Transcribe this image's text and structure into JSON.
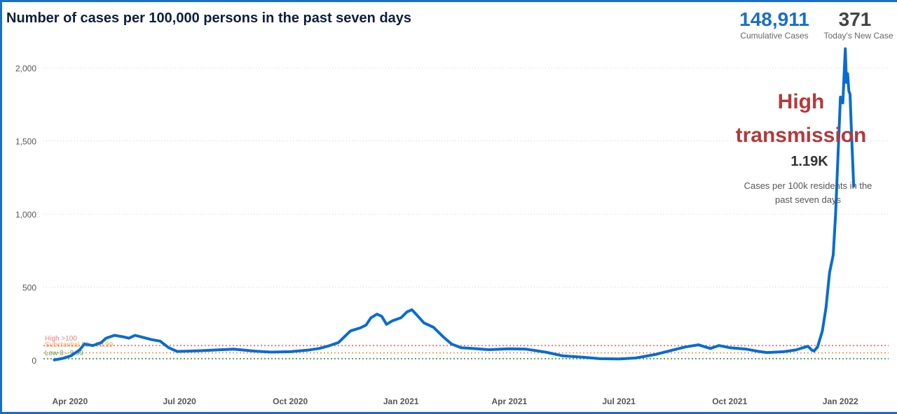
{
  "header": {
    "title": "Number of cases per 100,000 persons in the past seven days"
  },
  "kpis": {
    "cumulative_cases": {
      "value": "148,911",
      "label": "Cumulative Cases"
    },
    "todays_new_cases": {
      "value": "371",
      "label": "Today's New Case"
    }
  },
  "annotation": {
    "title": "High transmission",
    "value": "1.19K",
    "caption": "Cases per 100k residents in the past seven days"
  },
  "colors": {
    "line": "#0a6ccf",
    "accent": "#1a6fc4",
    "high": "#e88080",
    "substantial": "#f2a65a",
    "low": "#5aa05a",
    "annotation": "#b33a3a"
  },
  "chart_data": {
    "type": "line",
    "title": "Number of cases per 100,000 persons in the past seven days",
    "xlabel": "",
    "ylabel": "",
    "ylim": [
      0,
      2150
    ],
    "yticks": [
      0,
      500,
      1000,
      1500,
      2000
    ],
    "ytick_labels": [
      "0",
      "500",
      "1,000",
      "1,500",
      "2,000"
    ],
    "xticks": [
      "2020-04-01",
      "2020-07-01",
      "2020-10-01",
      "2021-01-01",
      "2021-04-01",
      "2021-07-01",
      "2021-10-01",
      "2022-01-01"
    ],
    "xtick_labels": [
      "Apr 2020",
      "Jul 2020",
      "Oct 2020",
      "Jan 2021",
      "Apr 2021",
      "Jul 2021",
      "Oct 2021",
      "Jan 2022"
    ],
    "xlim": [
      "2020-03-10",
      "2022-02-10"
    ],
    "grid": true,
    "thresholds": [
      {
        "name": "High >100",
        "value": 100,
        "color": "#e88080"
      },
      {
        "name": "Substantial 50 - 99.99",
        "value": 50,
        "color": "#f2a65a"
      },
      {
        "name": "Low 0 - 9.99",
        "value": 10,
        "color": "#5aa05a"
      }
    ],
    "series": [
      {
        "name": "",
        "points": [
          [
            "2020-03-19",
            2
          ],
          [
            "2020-03-26",
            12
          ],
          [
            "2020-04-02",
            30
          ],
          [
            "2020-04-09",
            70
          ],
          [
            "2020-04-13",
            110
          ],
          [
            "2020-04-20",
            100
          ],
          [
            "2020-04-27",
            120
          ],
          [
            "2020-05-01",
            150
          ],
          [
            "2020-05-08",
            170
          ],
          [
            "2020-05-15",
            160
          ],
          [
            "2020-05-20",
            150
          ],
          [
            "2020-05-25",
            170
          ],
          [
            "2020-06-01",
            155
          ],
          [
            "2020-06-08",
            140
          ],
          [
            "2020-06-15",
            130
          ],
          [
            "2020-06-22",
            85
          ],
          [
            "2020-06-29",
            60
          ],
          [
            "2020-07-10",
            62
          ],
          [
            "2020-07-20",
            65
          ],
          [
            "2020-08-01",
            70
          ],
          [
            "2020-08-15",
            75
          ],
          [
            "2020-09-01",
            62
          ],
          [
            "2020-09-15",
            55
          ],
          [
            "2020-10-01",
            58
          ],
          [
            "2020-10-15",
            68
          ],
          [
            "2020-10-25",
            80
          ],
          [
            "2020-11-01",
            95
          ],
          [
            "2020-11-10",
            120
          ],
          [
            "2020-11-20",
            200
          ],
          [
            "2020-11-28",
            220
          ],
          [
            "2020-12-03",
            240
          ],
          [
            "2020-12-07",
            290
          ],
          [
            "2020-12-12",
            315
          ],
          [
            "2020-12-16",
            300
          ],
          [
            "2020-12-20",
            245
          ],
          [
            "2020-12-25",
            270
          ],
          [
            "2021-01-01",
            290
          ],
          [
            "2021-01-06",
            330
          ],
          [
            "2021-01-10",
            345
          ],
          [
            "2021-01-14",
            310
          ],
          [
            "2021-01-20",
            255
          ],
          [
            "2021-01-28",
            225
          ],
          [
            "2021-02-05",
            160
          ],
          [
            "2021-02-12",
            110
          ],
          [
            "2021-02-20",
            85
          ],
          [
            "2021-03-01",
            80
          ],
          [
            "2021-03-15",
            72
          ],
          [
            "2021-04-01",
            78
          ],
          [
            "2021-04-15",
            75
          ],
          [
            "2021-05-01",
            55
          ],
          [
            "2021-05-15",
            30
          ],
          [
            "2021-06-01",
            20
          ],
          [
            "2021-06-15",
            10
          ],
          [
            "2021-07-01",
            8
          ],
          [
            "2021-07-15",
            15
          ],
          [
            "2021-08-01",
            40
          ],
          [
            "2021-08-15",
            70
          ],
          [
            "2021-08-25",
            90
          ],
          [
            "2021-09-05",
            105
          ],
          [
            "2021-09-15",
            80
          ],
          [
            "2021-09-22",
            100
          ],
          [
            "2021-10-01",
            85
          ],
          [
            "2021-10-15",
            75
          ],
          [
            "2021-10-25",
            60
          ],
          [
            "2021-11-01",
            52
          ],
          [
            "2021-11-15",
            58
          ],
          [
            "2021-11-25",
            70
          ],
          [
            "2021-12-01",
            85
          ],
          [
            "2021-12-05",
            95
          ],
          [
            "2021-12-08",
            70
          ],
          [
            "2021-12-10",
            62
          ],
          [
            "2021-12-13",
            90
          ],
          [
            "2021-12-17",
            200
          ],
          [
            "2021-12-20",
            360
          ],
          [
            "2021-12-23",
            600
          ],
          [
            "2021-12-26",
            720
          ],
          [
            "2021-12-28",
            1000
          ],
          [
            "2021-12-30",
            1400
          ],
          [
            "2022-01-01",
            1800
          ],
          [
            "2022-01-03",
            1760
          ],
          [
            "2022-01-05",
            2130
          ],
          [
            "2022-01-06",
            1900
          ],
          [
            "2022-01-07",
            1960
          ],
          [
            "2022-01-08",
            1840
          ],
          [
            "2022-01-09",
            1820
          ],
          [
            "2022-01-10",
            1600
          ],
          [
            "2022-01-12",
            1190
          ]
        ]
      }
    ]
  }
}
